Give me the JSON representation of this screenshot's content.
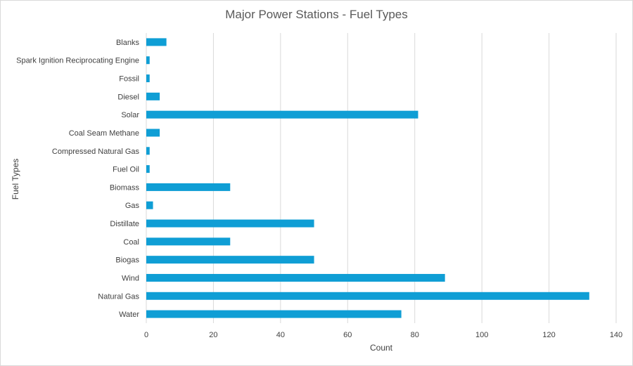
{
  "chart_data": {
    "type": "bar",
    "orientation": "horizontal",
    "title": "Major Power Stations - Fuel Types",
    "xlabel": "Count",
    "ylabel": "Fuel Types",
    "xlim": [
      0,
      140
    ],
    "xticks": [
      0,
      20,
      40,
      60,
      80,
      100,
      120,
      140
    ],
    "grid": true,
    "legend": "none",
    "bar_color": "#0f9ed5",
    "categories": [
      "Blanks",
      "Spark Ignition Reciprocating Engine",
      "Fossil",
      "Diesel",
      "Solar",
      "Coal Seam Methane",
      "Compressed Natural Gas",
      "Fuel Oil",
      "Biomass",
      "Gas",
      "Distillate",
      "Coal",
      "Biogas",
      "Wind",
      "Natural Gas",
      "Water"
    ],
    "values": [
      6,
      1,
      1,
      4,
      81,
      4,
      1,
      1,
      25,
      2,
      50,
      25,
      50,
      89,
      132,
      76
    ]
  }
}
